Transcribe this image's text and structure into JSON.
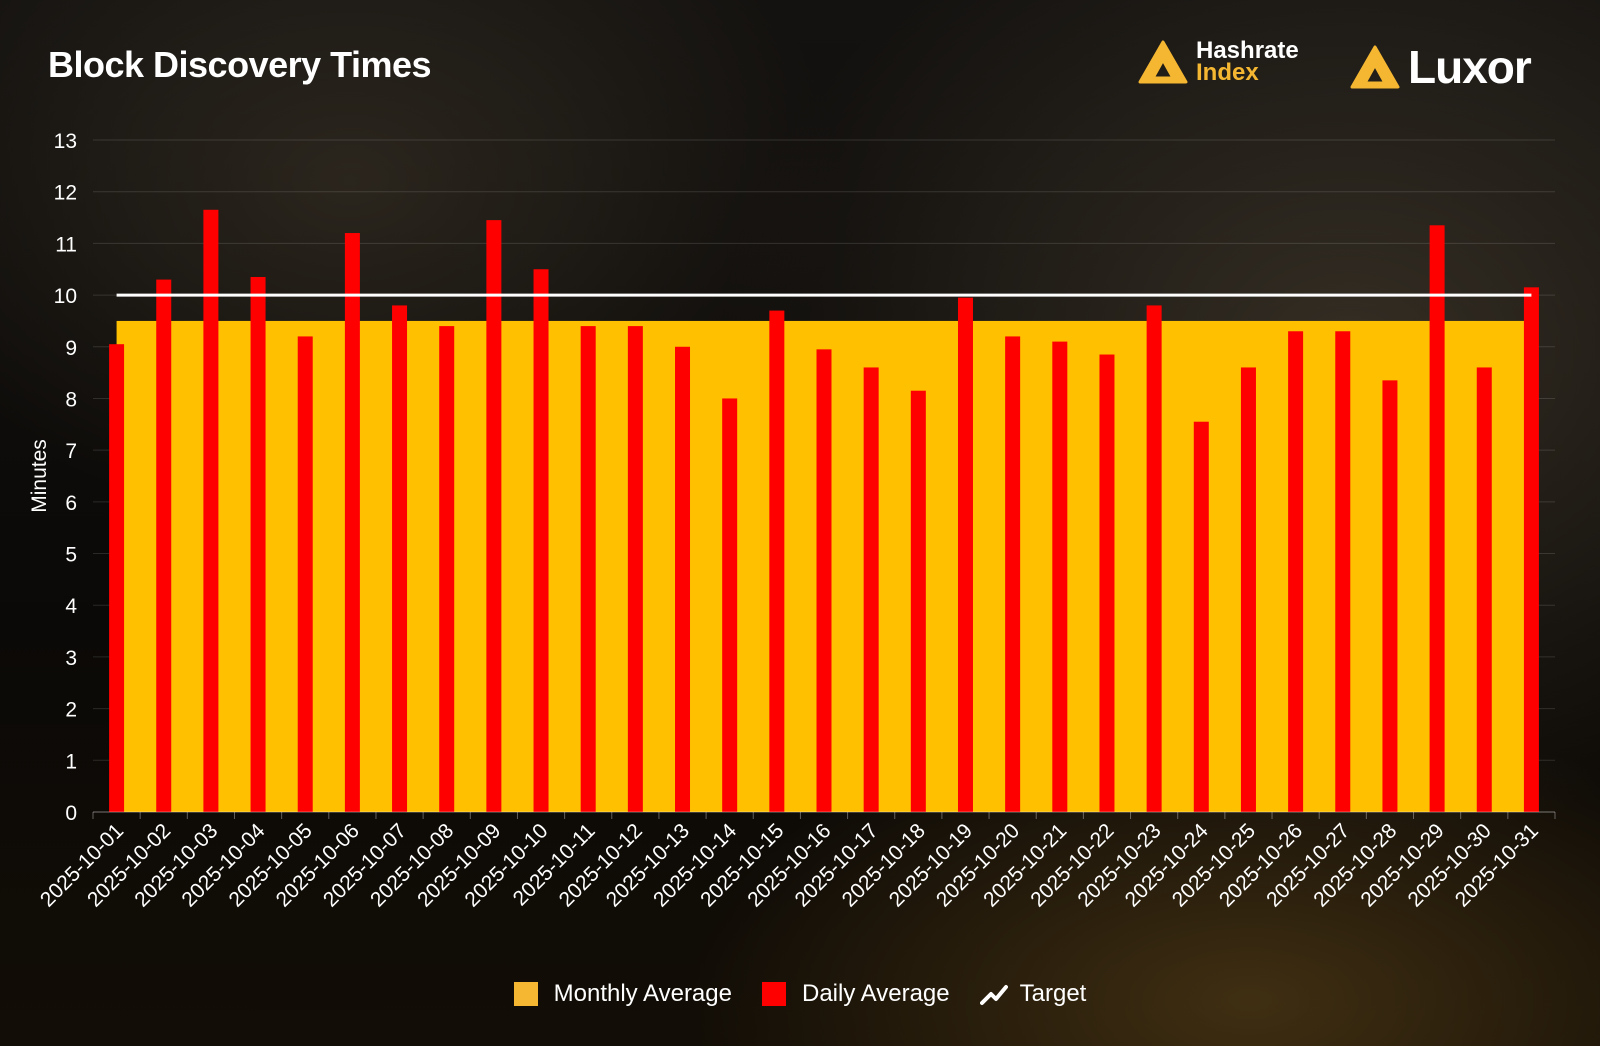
{
  "header": {
    "title": "Block Discovery Times",
    "brand1_line1": "Hashrate",
    "brand1_line2": "Index",
    "brand2": "Luxor",
    "brand_icon": "luxor-triangle-logo"
  },
  "legend": {
    "monthly": "Monthly Average",
    "daily": "Daily Average",
    "target": "Target"
  },
  "colors": {
    "monthly": "#ffc000",
    "daily": "#ff0000",
    "target": "#ffffff",
    "brand_accent": "#f5b731"
  },
  "chart_data": {
    "type": "bar",
    "title": "Block Discovery Times",
    "xlabel": "",
    "ylabel": "Minutes",
    "ylim": [
      0,
      13
    ],
    "yticks": [
      0,
      1,
      2,
      3,
      4,
      5,
      6,
      7,
      8,
      9,
      10,
      11,
      12,
      13
    ],
    "grid": true,
    "legend_position": "bottom",
    "categories": [
      "2025-10-01",
      "2025-10-02",
      "2025-10-03",
      "2025-10-04",
      "2025-10-05",
      "2025-10-06",
      "2025-10-07",
      "2025-10-08",
      "2025-10-09",
      "2025-10-10",
      "2025-10-11",
      "2025-10-12",
      "2025-10-13",
      "2025-10-14",
      "2025-10-15",
      "2025-10-16",
      "2025-10-17",
      "2025-10-18",
      "2025-10-19",
      "2025-10-20",
      "2025-10-21",
      "2025-10-22",
      "2025-10-23",
      "2025-10-24",
      "2025-10-25",
      "2025-10-26",
      "2025-10-27",
      "2025-10-28",
      "2025-10-29",
      "2025-10-30",
      "2025-10-31"
    ],
    "series": [
      {
        "name": "Daily Average",
        "type": "bar",
        "values": [
          9.05,
          10.3,
          11.65,
          10.35,
          9.2,
          11.2,
          9.8,
          9.4,
          11.45,
          10.5,
          9.4,
          9.4,
          9.0,
          8.0,
          9.7,
          8.95,
          8.6,
          8.15,
          9.95,
          9.2,
          9.1,
          8.85,
          9.8,
          7.55,
          8.6,
          9.3,
          9.3,
          8.35,
          11.35,
          8.6,
          10.15
        ]
      },
      {
        "name": "Monthly Average",
        "type": "area",
        "value": 9.5
      },
      {
        "name": "Target",
        "type": "line",
        "value": 10
      }
    ]
  }
}
